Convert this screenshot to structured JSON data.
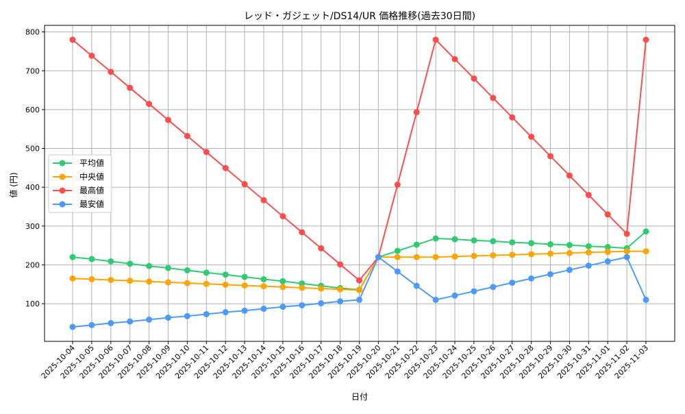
{
  "chart_data": {
    "type": "line",
    "title": "レッド・ガジェット/DS14/UR 価格推移(過去30日間)",
    "xlabel": "日付",
    "ylabel": "値 (円)",
    "ylim": [
      3,
      817
    ],
    "yticks": [
      100,
      200,
      300,
      400,
      500,
      600,
      700,
      800
    ],
    "grid": true,
    "legend_position": "center-left",
    "x": [
      "2025-10-04",
      "2025-10-05",
      "2025-10-06",
      "2025-10-07",
      "2025-10-08",
      "2025-10-09",
      "2025-10-10",
      "2025-10-11",
      "2025-10-12",
      "2025-10-13",
      "2025-10-14",
      "2025-10-15",
      "2025-10-16",
      "2025-10-17",
      "2025-10-18",
      "2025-10-19",
      "2025-10-20",
      "2025-10-21",
      "2025-10-22",
      "2025-10-23",
      "2025-10-24",
      "2025-10-25",
      "2025-10-26",
      "2025-10-27",
      "2025-10-28",
      "2025-10-29",
      "2025-10-30",
      "2025-10-31",
      "2025-11-01",
      "2025-11-02",
      "2025-11-03"
    ],
    "series": [
      {
        "name": "平均値",
        "color": "#2ecc71",
        "values": [
          220,
          215,
          209,
          203,
          197,
          192,
          186,
          180,
          175,
          169,
          163,
          158,
          152,
          146,
          140,
          136,
          220,
          236,
          252,
          268,
          266,
          263,
          261,
          258,
          256,
          253,
          251,
          248,
          246,
          243,
          286
        ]
      },
      {
        "name": "中央値",
        "color": "#ffa500",
        "values": [
          165,
          163,
          161,
          159,
          157,
          155,
          153,
          151,
          149,
          147,
          145,
          143,
          141,
          139,
          137,
          135,
          220,
          220,
          220,
          220,
          221.5,
          223,
          224.5,
          226,
          227.5,
          229,
          230.5,
          232,
          233.5,
          235,
          235
        ]
      },
      {
        "name": "最高値",
        "color": "#ff4c4c",
        "values": [
          780,
          738.7,
          697.3,
          656,
          614.7,
          573.3,
          532,
          490.7,
          449.3,
          408,
          366.7,
          325.3,
          284,
          242.7,
          201.3,
          160,
          220,
          406.7,
          593.3,
          780,
          730,
          680,
          630,
          580,
          530,
          480,
          430,
          380,
          330,
          280,
          780
        ]
      },
      {
        "name": "最安値",
        "color": "#4c9aff",
        "values": [
          40,
          45,
          50,
          54,
          59,
          64,
          68,
          73,
          78,
          82,
          87,
          92,
          96,
          101,
          106,
          110,
          220,
          183,
          146,
          110,
          121,
          132,
          143,
          154,
          165,
          176,
          187,
          198,
          209,
          220,
          110
        ]
      }
    ]
  }
}
